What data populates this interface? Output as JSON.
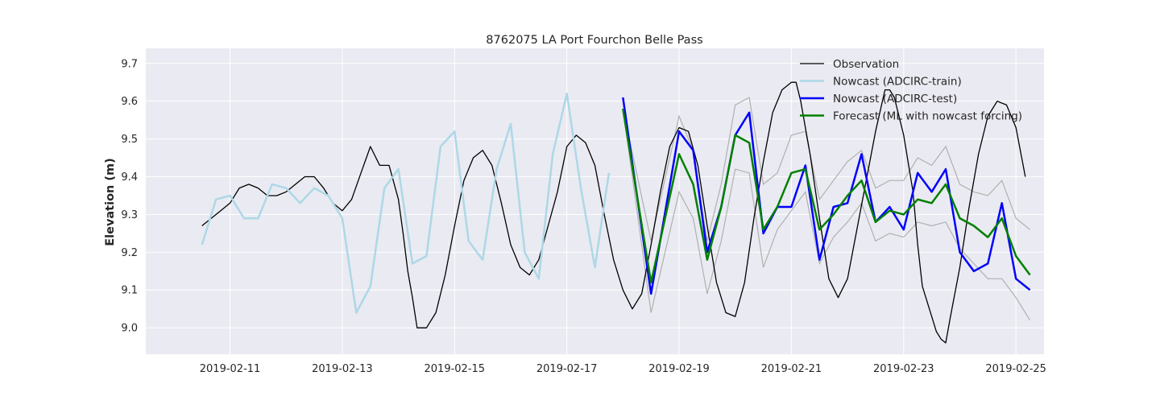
{
  "chart_data": {
    "type": "line",
    "title": "8762075 LA Port Fourchon Belle Pass",
    "xlabel": "",
    "ylabel": "Elevation (m)",
    "x_axis": {
      "type": "date",
      "range": [
        "2019-02-09T12:00",
        "2019-02-25T12:00"
      ],
      "ticks": [
        "2019-02-11",
        "2019-02-13",
        "2019-02-15",
        "2019-02-17",
        "2019-02-19",
        "2019-02-21",
        "2019-02-23",
        "2019-02-25"
      ]
    },
    "y_axis": {
      "range": [
        8.93,
        9.74
      ],
      "ticks": [
        9.0,
        9.1,
        9.2,
        9.3,
        9.4,
        9.5,
        9.6,
        9.7
      ],
      "tick_labels": [
        "9.0",
        "9.1",
        "9.2",
        "9.3",
        "9.4",
        "9.5",
        "9.6",
        "9.7"
      ]
    },
    "grid": true,
    "legend": {
      "position": "top-right",
      "entries": [
        "Observation",
        "Nowcast (ADCIRC-train)",
        "Nowcast (ADCIRC-test)",
        "Forecast (ML with nowcast forcing)"
      ]
    },
    "colors": {
      "background": "#eaeaf2",
      "grid": "#ffffff",
      "observation": "#000000",
      "train": "#add8e6",
      "test": "#0000ff",
      "forecast": "#008000",
      "band": "#b0b0b0"
    },
    "series": [
      {
        "name": "Observation",
        "color": "#000000",
        "points": [
          [
            "2019-02-10T12:00",
            9.27
          ],
          [
            "2019-02-10T16:00",
            9.29
          ],
          [
            "2019-02-10T20:00",
            9.31
          ],
          [
            "2019-02-11T00:00",
            9.33
          ],
          [
            "2019-02-11T04:00",
            9.37
          ],
          [
            "2019-02-11T08:00",
            9.38
          ],
          [
            "2019-02-11T12:00",
            9.37
          ],
          [
            "2019-02-11T16:00",
            9.35
          ],
          [
            "2019-02-11T20:00",
            9.35
          ],
          [
            "2019-02-12T00:00",
            9.36
          ],
          [
            "2019-02-12T04:00",
            9.38
          ],
          [
            "2019-02-12T08:00",
            9.4
          ],
          [
            "2019-02-12T12:00",
            9.4
          ],
          [
            "2019-02-12T16:00",
            9.37
          ],
          [
            "2019-02-12T20:00",
            9.33
          ],
          [
            "2019-02-13T00:00",
            9.31
          ],
          [
            "2019-02-13T04:00",
            9.34
          ],
          [
            "2019-02-13T08:00",
            9.41
          ],
          [
            "2019-02-13T12:00",
            9.48
          ],
          [
            "2019-02-13T16:00",
            9.43
          ],
          [
            "2019-02-13T20:00",
            9.43
          ],
          [
            "2019-02-14T00:00",
            9.34
          ],
          [
            "2019-02-14T02:00",
            9.25
          ],
          [
            "2019-02-14T04:00",
            9.15
          ],
          [
            "2019-02-14T06:00",
            9.08
          ],
          [
            "2019-02-14T08:00",
            9.0
          ],
          [
            "2019-02-14T12:00",
            9.0
          ],
          [
            "2019-02-14T16:00",
            9.04
          ],
          [
            "2019-02-14T20:00",
            9.14
          ],
          [
            "2019-02-15T00:00",
            9.27
          ],
          [
            "2019-02-15T04:00",
            9.39
          ],
          [
            "2019-02-15T08:00",
            9.45
          ],
          [
            "2019-02-15T12:00",
            9.47
          ],
          [
            "2019-02-15T16:00",
            9.43
          ],
          [
            "2019-02-15T20:00",
            9.33
          ],
          [
            "2019-02-16T00:00",
            9.22
          ],
          [
            "2019-02-16T04:00",
            9.16
          ],
          [
            "2019-02-16T08:00",
            9.14
          ],
          [
            "2019-02-16T12:00",
            9.18
          ],
          [
            "2019-02-16T16:00",
            9.27
          ],
          [
            "2019-02-16T20:00",
            9.36
          ],
          [
            "2019-02-17T00:00",
            9.48
          ],
          [
            "2019-02-17T04:00",
            9.51
          ],
          [
            "2019-02-17T08:00",
            9.49
          ],
          [
            "2019-02-17T12:00",
            9.43
          ],
          [
            "2019-02-17T16:00",
            9.3
          ],
          [
            "2019-02-17T20:00",
            9.18
          ],
          [
            "2019-02-18T00:00",
            9.1
          ],
          [
            "2019-02-18T04:00",
            9.05
          ],
          [
            "2019-02-18T08:00",
            9.09
          ],
          [
            "2019-02-18T12:00",
            9.22
          ],
          [
            "2019-02-18T16:00",
            9.36
          ],
          [
            "2019-02-18T20:00",
            9.48
          ],
          [
            "2019-02-19T00:00",
            9.53
          ],
          [
            "2019-02-19T04:00",
            9.52
          ],
          [
            "2019-02-19T08:00",
            9.43
          ],
          [
            "2019-02-19T12:00",
            9.27
          ],
          [
            "2019-02-19T16:00",
            9.12
          ],
          [
            "2019-02-19T20:00",
            9.04
          ],
          [
            "2019-02-20T00:00",
            9.03
          ],
          [
            "2019-02-20T04:00",
            9.12
          ],
          [
            "2019-02-20T08:00",
            9.29
          ],
          [
            "2019-02-20T12:00",
            9.44
          ],
          [
            "2019-02-20T16:00",
            9.57
          ],
          [
            "2019-02-20T20:00",
            9.63
          ],
          [
            "2019-02-21T00:00",
            9.65
          ],
          [
            "2019-02-21T02:00",
            9.65
          ],
          [
            "2019-02-21T04:00",
            9.6
          ],
          [
            "2019-02-21T08:00",
            9.46
          ],
          [
            "2019-02-21T12:00",
            9.29
          ],
          [
            "2019-02-21T16:00",
            9.13
          ],
          [
            "2019-02-21T20:00",
            9.08
          ],
          [
            "2019-02-22T00:00",
            9.13
          ],
          [
            "2019-02-22T04:00",
            9.26
          ],
          [
            "2019-02-22T08:00",
            9.39
          ],
          [
            "2019-02-22T12:00",
            9.52
          ],
          [
            "2019-02-22T16:00",
            9.63
          ],
          [
            "2019-02-22T18:00",
            9.63
          ],
          [
            "2019-02-22T20:00",
            9.61
          ],
          [
            "2019-02-23T00:00",
            9.51
          ],
          [
            "2019-02-23T04:00",
            9.36
          ],
          [
            "2019-02-23T06:00",
            9.22
          ],
          [
            "2019-02-23T08:00",
            9.11
          ],
          [
            "2019-02-23T12:00",
            9.03
          ],
          [
            "2019-02-23T14:00",
            8.99
          ],
          [
            "2019-02-23T16:00",
            8.97
          ],
          [
            "2019-02-23T18:00",
            8.96
          ],
          [
            "2019-02-23T20:00",
            9.03
          ],
          [
            "2019-02-24T00:00",
            9.16
          ],
          [
            "2019-02-24T04:00",
            9.32
          ],
          [
            "2019-02-24T08:00",
            9.46
          ],
          [
            "2019-02-24T12:00",
            9.56
          ],
          [
            "2019-02-24T16:00",
            9.6
          ],
          [
            "2019-02-24T20:00",
            9.59
          ],
          [
            "2019-02-25T00:00",
            9.53
          ],
          [
            "2019-02-25T04:00",
            9.4
          ]
        ]
      },
      {
        "name": "Nowcast (ADCIRC-train)",
        "color": "#add8e6",
        "points": [
          [
            "2019-02-10T12:00",
            9.22
          ],
          [
            "2019-02-10T18:00",
            9.34
          ],
          [
            "2019-02-11T00:00",
            9.35
          ],
          [
            "2019-02-11T06:00",
            9.29
          ],
          [
            "2019-02-11T12:00",
            9.29
          ],
          [
            "2019-02-11T18:00",
            9.38
          ],
          [
            "2019-02-12T00:00",
            9.37
          ],
          [
            "2019-02-12T06:00",
            9.33
          ],
          [
            "2019-02-12T12:00",
            9.37
          ],
          [
            "2019-02-12T18:00",
            9.35
          ],
          [
            "2019-02-13T00:00",
            9.29
          ],
          [
            "2019-02-13T06:00",
            9.04
          ],
          [
            "2019-02-13T12:00",
            9.11
          ],
          [
            "2019-02-13T18:00",
            9.37
          ],
          [
            "2019-02-14T00:00",
            9.42
          ],
          [
            "2019-02-14T06:00",
            9.17
          ],
          [
            "2019-02-14T12:00",
            9.19
          ],
          [
            "2019-02-14T18:00",
            9.48
          ],
          [
            "2019-02-15T00:00",
            9.52
          ],
          [
            "2019-02-15T06:00",
            9.23
          ],
          [
            "2019-02-15T12:00",
            9.18
          ],
          [
            "2019-02-15T18:00",
            9.42
          ],
          [
            "2019-02-16T00:00",
            9.54
          ],
          [
            "2019-02-16T06:00",
            9.2
          ],
          [
            "2019-02-16T12:00",
            9.13
          ],
          [
            "2019-02-16T18:00",
            9.46
          ],
          [
            "2019-02-17T00:00",
            9.62
          ],
          [
            "2019-02-17T06:00",
            9.37
          ],
          [
            "2019-02-17T12:00",
            9.16
          ],
          [
            "2019-02-17T18:00",
            9.41
          ]
        ]
      },
      {
        "name": "Nowcast (ADCIRC-test)",
        "color": "#0000ff",
        "points": [
          [
            "2019-02-18T00:00",
            9.61
          ],
          [
            "2019-02-18T12:00",
            9.09
          ],
          [
            "2019-02-19T00:00",
            9.52
          ],
          [
            "2019-02-19T06:00",
            9.47
          ],
          [
            "2019-02-19T12:00",
            9.2
          ],
          [
            "2019-02-19T18:00",
            9.32
          ],
          [
            "2019-02-20T00:00",
            9.51
          ],
          [
            "2019-02-20T06:00",
            9.57
          ],
          [
            "2019-02-20T12:00",
            9.25
          ],
          [
            "2019-02-20T18:00",
            9.32
          ],
          [
            "2019-02-21T00:00",
            9.32
          ],
          [
            "2019-02-21T06:00",
            9.43
          ],
          [
            "2019-02-21T12:00",
            9.18
          ],
          [
            "2019-02-21T18:00",
            9.32
          ],
          [
            "2019-02-22T00:00",
            9.33
          ],
          [
            "2019-02-22T06:00",
            9.46
          ],
          [
            "2019-02-22T12:00",
            9.28
          ],
          [
            "2019-02-22T18:00",
            9.32
          ],
          [
            "2019-02-23T00:00",
            9.26
          ],
          [
            "2019-02-23T06:00",
            9.41
          ],
          [
            "2019-02-23T12:00",
            9.36
          ],
          [
            "2019-02-23T18:00",
            9.42
          ],
          [
            "2019-02-24T00:00",
            9.2
          ],
          [
            "2019-02-24T06:00",
            9.15
          ],
          [
            "2019-02-24T12:00",
            9.17
          ],
          [
            "2019-02-24T18:00",
            9.33
          ],
          [
            "2019-02-25T00:00",
            9.13
          ],
          [
            "2019-02-25T06:00",
            9.1
          ]
        ]
      },
      {
        "name": "Forecast (ML with nowcast forcing)",
        "color": "#008000",
        "points": [
          [
            "2019-02-18T00:00",
            9.58
          ],
          [
            "2019-02-18T12:00",
            9.12
          ],
          [
            "2019-02-19T00:00",
            9.46
          ],
          [
            "2019-02-19T06:00",
            9.38
          ],
          [
            "2019-02-19T12:00",
            9.18
          ],
          [
            "2019-02-19T18:00",
            9.32
          ],
          [
            "2019-02-20T00:00",
            9.51
          ],
          [
            "2019-02-20T06:00",
            9.49
          ],
          [
            "2019-02-20T12:00",
            9.26
          ],
          [
            "2019-02-20T18:00",
            9.32
          ],
          [
            "2019-02-21T00:00",
            9.41
          ],
          [
            "2019-02-21T06:00",
            9.42
          ],
          [
            "2019-02-21T12:00",
            9.26
          ],
          [
            "2019-02-21T18:00",
            9.3
          ],
          [
            "2019-02-22T00:00",
            9.35
          ],
          [
            "2019-02-22T06:00",
            9.39
          ],
          [
            "2019-02-22T12:00",
            9.28
          ],
          [
            "2019-02-22T18:00",
            9.31
          ],
          [
            "2019-02-23T00:00",
            9.3
          ],
          [
            "2019-02-23T06:00",
            9.34
          ],
          [
            "2019-02-23T12:00",
            9.33
          ],
          [
            "2019-02-23T18:00",
            9.38
          ],
          [
            "2019-02-24T00:00",
            9.29
          ],
          [
            "2019-02-24T06:00",
            9.27
          ],
          [
            "2019-02-24T12:00",
            9.24
          ],
          [
            "2019-02-24T18:00",
            9.29
          ],
          [
            "2019-02-25T00:00",
            9.19
          ],
          [
            "2019-02-25T06:00",
            9.14
          ]
        ]
      }
    ],
    "bands": [
      {
        "role": "upper",
        "color": "#b0b0b0",
        "points": [
          [
            "2019-02-18T00:00",
            9.58
          ],
          [
            "2019-02-18T12:00",
            9.23
          ],
          [
            "2019-02-19T00:00",
            9.56
          ],
          [
            "2019-02-19T06:00",
            9.47
          ],
          [
            "2019-02-19T12:00",
            9.23
          ],
          [
            "2019-02-19T18:00",
            9.38
          ],
          [
            "2019-02-20T00:00",
            9.59
          ],
          [
            "2019-02-20T06:00",
            9.61
          ],
          [
            "2019-02-20T12:00",
            9.38
          ],
          [
            "2019-02-20T18:00",
            9.41
          ],
          [
            "2019-02-21T00:00",
            9.51
          ],
          [
            "2019-02-21T06:00",
            9.52
          ],
          [
            "2019-02-21T12:00",
            9.34
          ],
          [
            "2019-02-21T18:00",
            9.39
          ],
          [
            "2019-02-22T00:00",
            9.44
          ],
          [
            "2019-02-22T06:00",
            9.47
          ],
          [
            "2019-02-22T12:00",
            9.37
          ],
          [
            "2019-02-22T18:00",
            9.39
          ],
          [
            "2019-02-23T00:00",
            9.39
          ],
          [
            "2019-02-23T06:00",
            9.45
          ],
          [
            "2019-02-23T12:00",
            9.43
          ],
          [
            "2019-02-23T18:00",
            9.48
          ],
          [
            "2019-02-24T00:00",
            9.38
          ],
          [
            "2019-02-24T06:00",
            9.36
          ],
          [
            "2019-02-24T12:00",
            9.35
          ],
          [
            "2019-02-24T18:00",
            9.39
          ],
          [
            "2019-02-25T00:00",
            9.29
          ],
          [
            "2019-02-25T06:00",
            9.26
          ]
        ]
      },
      {
        "role": "lower",
        "color": "#b0b0b0",
        "points": [
          [
            "2019-02-18T00:00",
            9.58
          ],
          [
            "2019-02-18T12:00",
            9.04
          ],
          [
            "2019-02-19T00:00",
            9.36
          ],
          [
            "2019-02-19T06:00",
            9.29
          ],
          [
            "2019-02-19T12:00",
            9.09
          ],
          [
            "2019-02-19T18:00",
            9.23
          ],
          [
            "2019-02-20T00:00",
            9.42
          ],
          [
            "2019-02-20T06:00",
            9.41
          ],
          [
            "2019-02-20T12:00",
            9.16
          ],
          [
            "2019-02-20T18:00",
            9.26
          ],
          [
            "2019-02-21T00:00",
            9.31
          ],
          [
            "2019-02-21T06:00",
            9.36
          ],
          [
            "2019-02-21T12:00",
            9.17
          ],
          [
            "2019-02-21T18:00",
            9.24
          ],
          [
            "2019-02-22T00:00",
            9.28
          ],
          [
            "2019-02-22T06:00",
            9.33
          ],
          [
            "2019-02-22T12:00",
            9.23
          ],
          [
            "2019-02-22T18:00",
            9.25
          ],
          [
            "2019-02-23T00:00",
            9.24
          ],
          [
            "2019-02-23T06:00",
            9.28
          ],
          [
            "2019-02-23T12:00",
            9.27
          ],
          [
            "2019-02-23T18:00",
            9.28
          ],
          [
            "2019-02-24T00:00",
            9.21
          ],
          [
            "2019-02-24T06:00",
            9.17
          ],
          [
            "2019-02-24T12:00",
            9.13
          ],
          [
            "2019-02-24T18:00",
            9.13
          ],
          [
            "2019-02-25T00:00",
            9.08
          ],
          [
            "2019-02-25T06:00",
            9.02
          ]
        ]
      }
    ]
  }
}
